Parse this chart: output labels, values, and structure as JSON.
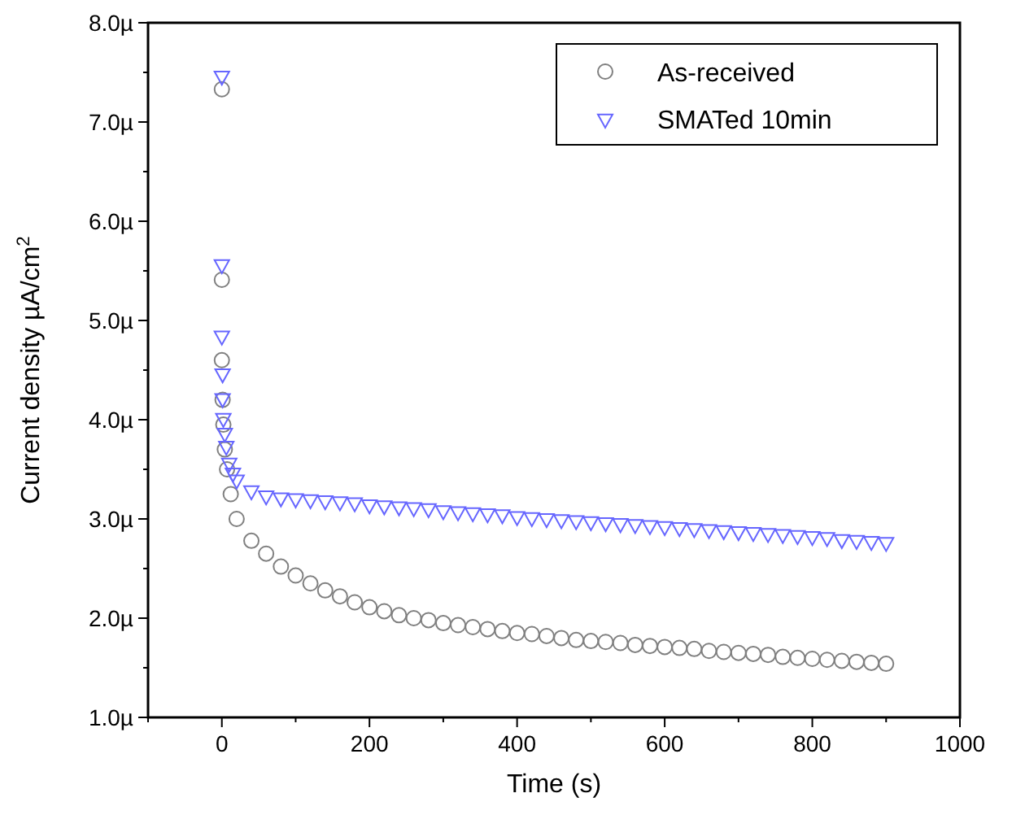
{
  "chart_data": {
    "type": "scatter",
    "xlabel": "Time (s)",
    "ylabel": "Current density µA/cm$^{2}$",
    "xlim": [
      -100,
      1000
    ],
    "xticks": [
      {
        "value": -100,
        "label": null
      },
      0,
      {
        "value": 100,
        "label": null
      },
      200,
      {
        "value": 300,
        "label": null
      },
      400,
      {
        "value": 500,
        "label": null
      },
      600,
      {
        "value": 700,
        "label": null
      },
      800,
      {
        "value": 900,
        "label": null
      },
      1000
    ],
    "ylim": [
      1,
      8
    ],
    "yticks": [
      {
        "value": 1,
        "label": "1.0µ"
      },
      {
        "value": 1.5,
        "label": null
      },
      {
        "value": 2,
        "label": "2.0µ"
      },
      {
        "value": 2.5,
        "label": null
      },
      {
        "value": 3,
        "label": "3.0µ"
      },
      {
        "value": 3.5,
        "label": null
      },
      {
        "value": 4,
        "label": "4.0µ"
      },
      {
        "value": 4.5,
        "label": null
      },
      {
        "value": 5,
        "label": "5.0µ"
      },
      {
        "value": 5.5,
        "label": null
      },
      {
        "value": 6,
        "label": "6.0µ"
      },
      {
        "value": 6.5,
        "label": null
      },
      {
        "value": 7,
        "label": "7.0µ"
      },
      {
        "value": 7.5,
        "label": null
      },
      {
        "value": 8,
        "label": "8.0µ"
      }
    ],
    "grid": false,
    "legend": "top right",
    "series": [
      {
        "name": "As-received",
        "color": "#808080",
        "marker": "circle",
        "x": [
          0,
          0,
          0,
          1,
          2,
          4,
          7,
          12,
          20,
          40,
          60,
          80,
          100,
          120,
          140,
          160,
          180,
          200,
          220,
          240,
          260,
          280,
          300,
          320,
          340,
          360,
          380,
          400,
          420,
          440,
          460,
          480,
          500,
          520,
          540,
          560,
          580,
          600,
          620,
          640,
          660,
          680,
          700,
          720,
          740,
          760,
          780,
          800,
          820,
          840,
          860,
          880,
          900
        ],
        "values": [
          7.33,
          5.41,
          4.6,
          4.2,
          3.95,
          3.7,
          3.5,
          3.25,
          3.0,
          2.78,
          2.65,
          2.52,
          2.43,
          2.35,
          2.28,
          2.22,
          2.16,
          2.11,
          2.07,
          2.03,
          2.0,
          1.98,
          1.95,
          1.93,
          1.91,
          1.89,
          1.87,
          1.85,
          1.84,
          1.82,
          1.8,
          1.78,
          1.77,
          1.76,
          1.75,
          1.73,
          1.72,
          1.71,
          1.7,
          1.69,
          1.67,
          1.66,
          1.65,
          1.64,
          1.63,
          1.61,
          1.6,
          1.59,
          1.58,
          1.57,
          1.56,
          1.55,
          1.54
        ]
      },
      {
        "name": "SMATed 10min",
        "color": "#6666ff",
        "marker": "triangle-down",
        "x": [
          0,
          0,
          0,
          1,
          1,
          2,
          4,
          6,
          10,
          15,
          20,
          40,
          60,
          80,
          100,
          120,
          140,
          160,
          180,
          200,
          220,
          240,
          260,
          280,
          300,
          320,
          340,
          360,
          380,
          400,
          420,
          440,
          460,
          480,
          500,
          520,
          540,
          560,
          580,
          600,
          620,
          640,
          660,
          680,
          700,
          720,
          740,
          760,
          780,
          800,
          820,
          840,
          860,
          880,
          900
        ],
        "values": [
          7.45,
          5.55,
          4.83,
          4.45,
          4.2,
          4.0,
          3.85,
          3.72,
          3.55,
          3.45,
          3.38,
          3.27,
          3.22,
          3.2,
          3.19,
          3.18,
          3.17,
          3.16,
          3.15,
          3.13,
          3.12,
          3.11,
          3.1,
          3.09,
          3.07,
          3.06,
          3.05,
          3.04,
          3.03,
          3.01,
          3.0,
          2.99,
          2.98,
          2.97,
          2.96,
          2.95,
          2.94,
          2.93,
          2.92,
          2.91,
          2.9,
          2.89,
          2.88,
          2.87,
          2.86,
          2.85,
          2.84,
          2.83,
          2.82,
          2.81,
          2.8,
          2.78,
          2.77,
          2.76,
          2.75
        ]
      }
    ]
  }
}
